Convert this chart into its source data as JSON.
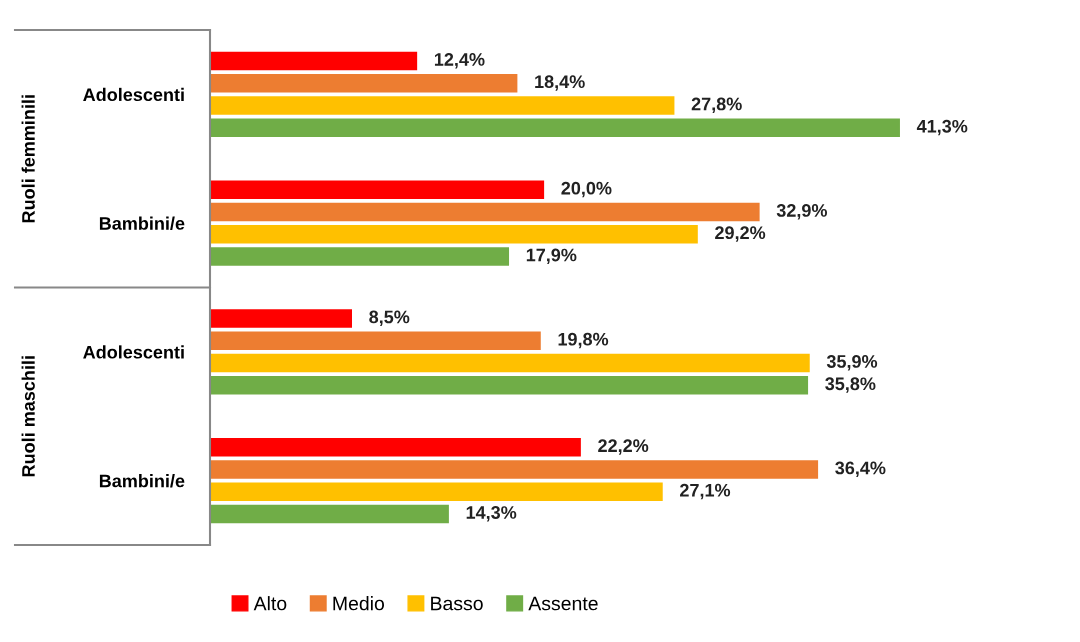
{
  "chart_data": {
    "type": "bar",
    "orientation": "horizontal",
    "categories": [
      "Adolescenti",
      "Bambini/e",
      "Adolescenti",
      "Bambini/e"
    ],
    "annotations": [
      "Ruoli femminili",
      "Ruoli maschili"
    ],
    "series": [
      {
        "name": "Alto",
        "color": "#ff0000",
        "values": [
          12.4,
          20.0,
          8.5,
          22.2
        ],
        "value_labels": [
          "12,4%",
          "20,0%",
          "8,5%",
          "22,2%"
        ]
      },
      {
        "name": "Medio",
        "color": "#ed7d31",
        "values": [
          18.4,
          32.9,
          19.8,
          36.4
        ],
        "value_labels": [
          "18,4%",
          "32,9%",
          "19,8%",
          "36,4%"
        ]
      },
      {
        "name": "Basso",
        "color": "#ffc000",
        "values": [
          27.8,
          29.2,
          35.9,
          27.1
        ],
        "value_labels": [
          "27,8%",
          "29,2%",
          "35,9%",
          "27,1%"
        ]
      },
      {
        "name": "Assente",
        "color": "#70ad47",
        "values": [
          41.3,
          17.9,
          35.8,
          14.3
        ],
        "value_labels": [
          "41,3%",
          "17,9%",
          "35,8%",
          "14,3%"
        ]
      }
    ],
    "legend": "bottom",
    "grid": false
  }
}
